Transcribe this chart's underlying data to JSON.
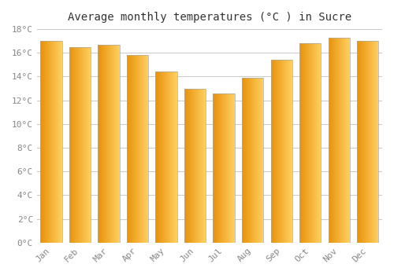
{
  "title": "Average monthly temperatures (°C ) in Sucre",
  "months": [
    "Jan",
    "Feb",
    "Mar",
    "Apr",
    "May",
    "Jun",
    "Jul",
    "Aug",
    "Sep",
    "Oct",
    "Nov",
    "Dec"
  ],
  "values": [
    17.0,
    16.5,
    16.7,
    15.8,
    14.4,
    13.0,
    12.6,
    13.9,
    15.4,
    16.8,
    17.3,
    17.0
  ],
  "bar_color_left": "#E8920A",
  "bar_color_right": "#FFD060",
  "bar_border_color": "#AAAAAA",
  "ylim": [
    0,
    18
  ],
  "yticks": [
    0,
    2,
    4,
    6,
    8,
    10,
    12,
    14,
    16,
    18
  ],
  "background_color": "#FFFFFF",
  "grid_color": "#CCCCCC",
  "title_fontsize": 10,
  "tick_fontsize": 8,
  "tick_color": "#888888",
  "title_color": "#333333",
  "bar_width": 0.75
}
